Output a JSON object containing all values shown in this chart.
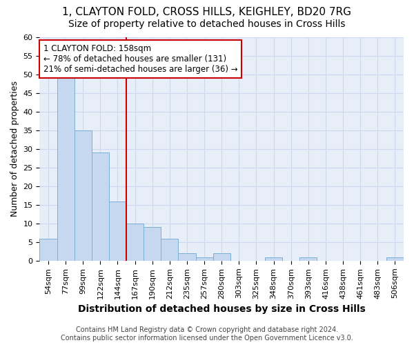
{
  "title1": "1, CLAYTON FOLD, CROSS HILLS, KEIGHLEY, BD20 7RG",
  "title2": "Size of property relative to detached houses in Cross Hills",
  "xlabel": "Distribution of detached houses by size in Cross Hills",
  "ylabel": "Number of detached properties",
  "categories": [
    "54sqm",
    "77sqm",
    "99sqm",
    "122sqm",
    "144sqm",
    "167sqm",
    "190sqm",
    "212sqm",
    "235sqm",
    "257sqm",
    "280sqm",
    "303sqm",
    "325sqm",
    "348sqm",
    "370sqm",
    "393sqm",
    "416sqm",
    "438sqm",
    "461sqm",
    "483sqm",
    "506sqm"
  ],
  "values": [
    6,
    50,
    35,
    29,
    16,
    10,
    9,
    6,
    2,
    1,
    2,
    0,
    0,
    1,
    0,
    1,
    0,
    0,
    0,
    0,
    1
  ],
  "bar_color": "#c5d8f0",
  "bar_edge_color": "#7aafd4",
  "vline_index": 5,
  "vline_color": "#cc0000",
  "annotation_text": "1 CLAYTON FOLD: 158sqm\n← 78% of detached houses are smaller (131)\n21% of semi-detached houses are larger (36) →",
  "annotation_box_color": "#cc0000",
  "ylim": [
    0,
    60
  ],
  "yticks": [
    0,
    5,
    10,
    15,
    20,
    25,
    30,
    35,
    40,
    45,
    50,
    55,
    60
  ],
  "grid_color": "#ccd8ee",
  "background_color": "#e8eef8",
  "footer_text": "Contains HM Land Registry data © Crown copyright and database right 2024.\nContains public sector information licensed under the Open Government Licence v3.0.",
  "title1_fontsize": 11,
  "title2_fontsize": 10,
  "xlabel_fontsize": 10,
  "ylabel_fontsize": 9,
  "tick_fontsize": 8,
  "footer_fontsize": 7,
  "annot_fontsize": 8.5
}
